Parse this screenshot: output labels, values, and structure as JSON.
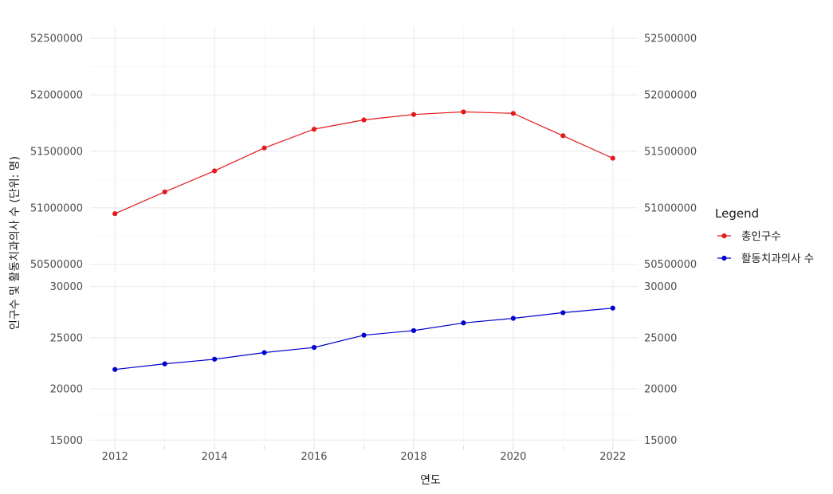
{
  "chart_data": {
    "type": "line",
    "xlabel": "연도",
    "ylabel": "인구수 및 활동치과의사 수 (단위: 명)",
    "legend": {
      "title": "Legend",
      "position": "right"
    },
    "x": [
      2012,
      2013,
      2014,
      2015,
      2016,
      2017,
      2018,
      2019,
      2020,
      2021,
      2022
    ],
    "x_ticks": [
      2012,
      2014,
      2016,
      2018,
      2020,
      2022
    ],
    "grid": true,
    "facets": [
      {
        "series_index": 0,
        "ylim": [
          50420000,
          52600000
        ],
        "y_ticks": [
          50500000,
          51000000,
          51500000,
          52000000,
          52500000
        ],
        "y_tick_labels": [
          "50500000",
          "51000000",
          "51500000",
          "52000000",
          "52500000"
        ],
        "secondary_axis": true
      },
      {
        "series_index": 1,
        "ylim": [
          14400,
          30600
        ],
        "y_ticks": [
          15000,
          20000,
          25000,
          30000
        ],
        "y_tick_labels": [
          "15000",
          "20000",
          "25000",
          "30000"
        ],
        "secondary_axis": true
      }
    ],
    "series": [
      {
        "name": "총인구수",
        "color": "#e31a1c",
        "values": [
          50948000,
          51141000,
          51327000,
          51530000,
          51696000,
          51778000,
          51826000,
          51849000,
          51836000,
          51638000,
          51439000
        ]
      },
      {
        "name": "활동치과의사 수",
        "color": "#0000cd",
        "values": [
          21900,
          22450,
          22900,
          23550,
          24050,
          25250,
          25700,
          26450,
          26900,
          27450,
          27900
        ]
      }
    ]
  }
}
